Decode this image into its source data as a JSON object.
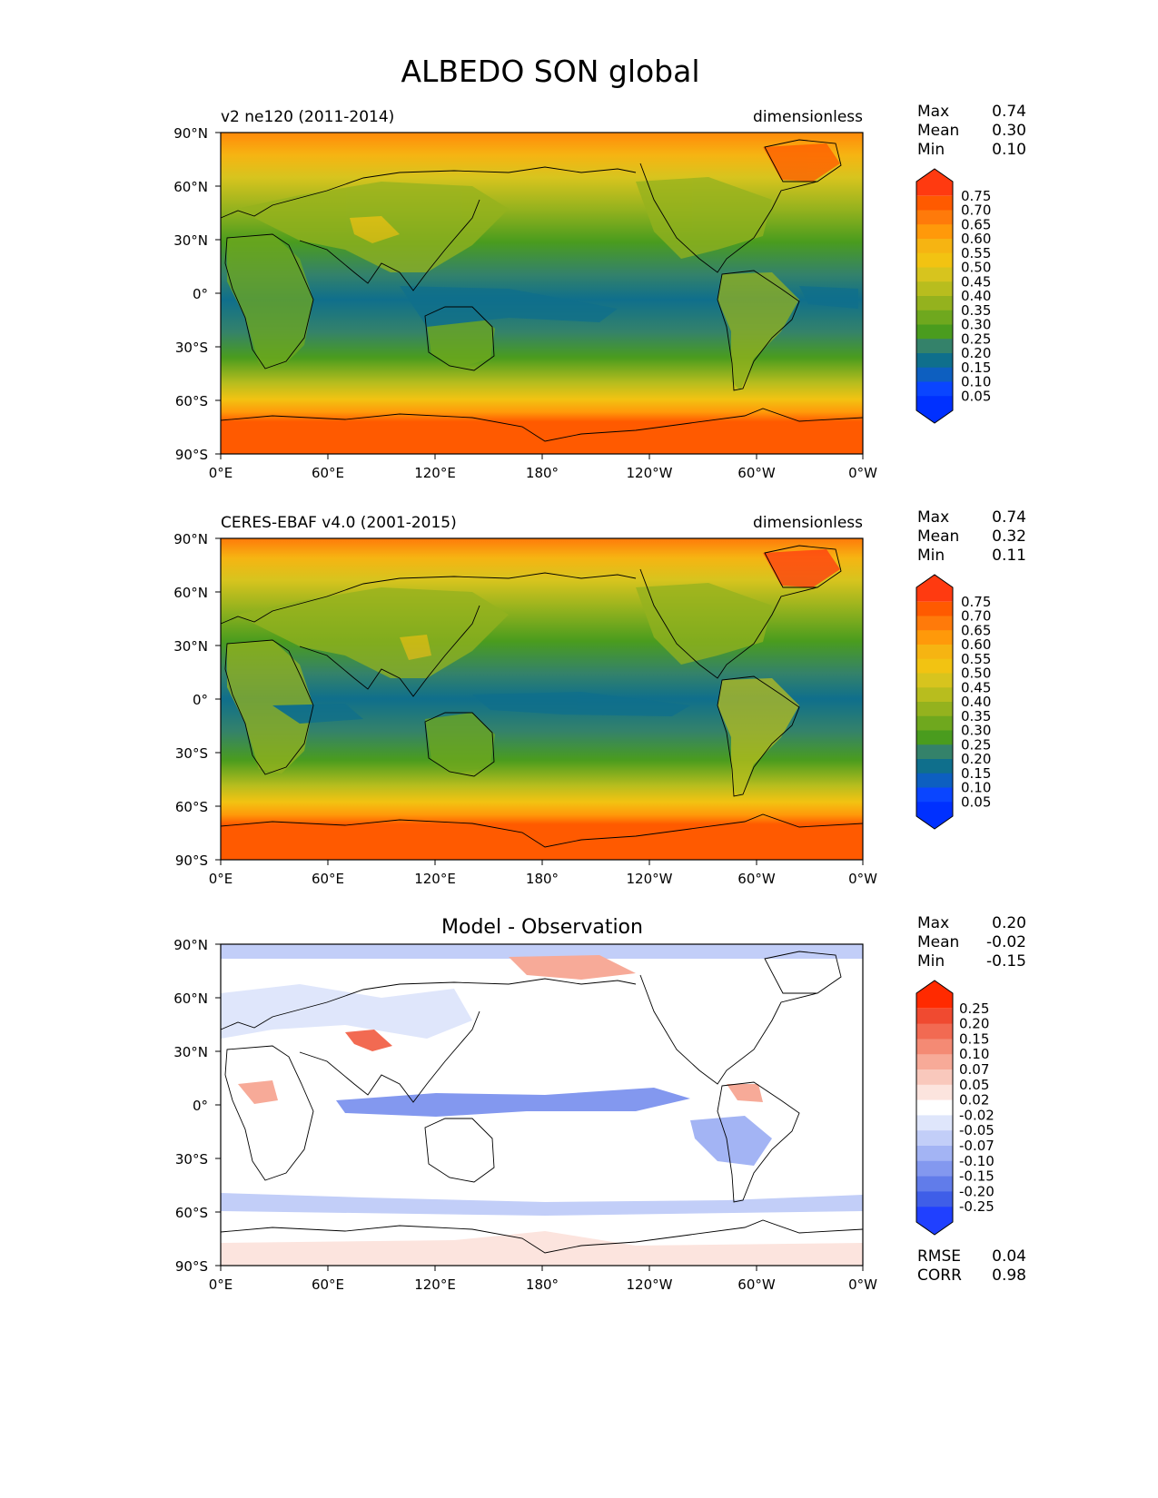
{
  "figure": {
    "title": "ALBEDO SON global"
  },
  "axes": {
    "lat_ticks": [
      "90°N",
      "60°N",
      "30°N",
      "0°",
      "30°S",
      "60°S",
      "90°S"
    ],
    "lon_ticks": [
      "0°E",
      "60°E",
      "120°E",
      "180°",
      "120°W",
      "60°W",
      "0°W"
    ]
  },
  "panels": [
    {
      "id": "model",
      "left_title": "v2 ne120 (2011-2014)",
      "center_title": "",
      "right_title": "dimensionless",
      "stats": [
        {
          "label": "Max",
          "value": "0.74"
        },
        {
          "label": "Mean",
          "value": "0.30"
        },
        {
          "label": "Min",
          "value": "0.10"
        }
      ],
      "colorbar": {
        "labels": [
          "0.75",
          "0.70",
          "0.65",
          "0.60",
          "0.55",
          "0.50",
          "0.45",
          "0.40",
          "0.35",
          "0.30",
          "0.25",
          "0.20",
          "0.15",
          "0.10",
          "0.05"
        ],
        "colors": [
          "#ff3a10",
          "#ff5a00",
          "#ff7a0a",
          "#ff990a",
          "#f6b412",
          "#f2c312",
          "#d7c41e",
          "#b8bd1e",
          "#94b21e",
          "#6fa81e",
          "#4a9c1e",
          "#34826a",
          "#0f6f8c",
          "#0d5fc0",
          "#0a45ff",
          "#0030ff"
        ]
      },
      "footer": []
    },
    {
      "id": "obs",
      "left_title": "CERES-EBAF v4.0 (2001-2015)",
      "center_title": "",
      "right_title": "dimensionless",
      "stats": [
        {
          "label": "Max",
          "value": "0.74"
        },
        {
          "label": "Mean",
          "value": "0.32"
        },
        {
          "label": "Min",
          "value": "0.11"
        }
      ],
      "colorbar": {
        "labels": [
          "0.75",
          "0.70",
          "0.65",
          "0.60",
          "0.55",
          "0.50",
          "0.45",
          "0.40",
          "0.35",
          "0.30",
          "0.25",
          "0.20",
          "0.15",
          "0.10",
          "0.05"
        ],
        "colors": [
          "#ff3a10",
          "#ff5a00",
          "#ff7a0a",
          "#ff990a",
          "#f6b412",
          "#f2c312",
          "#d7c41e",
          "#b8bd1e",
          "#94b21e",
          "#6fa81e",
          "#4a9c1e",
          "#34826a",
          "#0f6f8c",
          "#0d5fc0",
          "#0a45ff",
          "#0030ff"
        ]
      },
      "footer": []
    },
    {
      "id": "diff",
      "left_title": "",
      "center_title": "Model - Observation",
      "right_title": "",
      "stats": [
        {
          "label": "Max",
          "value": "0.20"
        },
        {
          "label": "Mean",
          "value": "-0.02"
        },
        {
          "label": "Min",
          "value": "-0.15"
        }
      ],
      "colorbar": {
        "labels": [
          "0.25",
          "0.20",
          "0.15",
          "0.10",
          "0.07",
          "0.05",
          "0.02",
          "-0.02",
          "-0.05",
          "-0.07",
          "-0.10",
          "-0.15",
          "-0.20",
          "-0.25"
        ],
        "colors": [
          "#ff2a00",
          "#f04a30",
          "#f26a52",
          "#f48a74",
          "#f7aa98",
          "#f9c8bc",
          "#fce4de",
          "#ffffff",
          "#dfe6fb",
          "#c2cef8",
          "#a3b4f4",
          "#8398ef",
          "#617cea",
          "#3f5ee8",
          "#2040ff"
        ]
      },
      "footer": [
        {
          "label": "RMSE",
          "value": "0.04"
        },
        {
          "label": "CORR",
          "value": "0.98"
        }
      ]
    }
  ],
  "colors": {
    "model_obs_bands": {
      "polar_north": "#ff8a0a",
      "northern_mid": "#d7c41e",
      "northern_land": "#6fa81e",
      "subtropics": "#34826a",
      "tropics_ocean": "#0f6f8c",
      "southern_subtropics": "#4a9c1e",
      "southern_mid": "#b8bd1e",
      "southern_ocean": "#f6b412",
      "antarctic": "#ff5a00"
    },
    "diff_background": "#ffffff",
    "diff_negative": "#c8d4f8",
    "diff_positive": "#f9c8bc"
  }
}
